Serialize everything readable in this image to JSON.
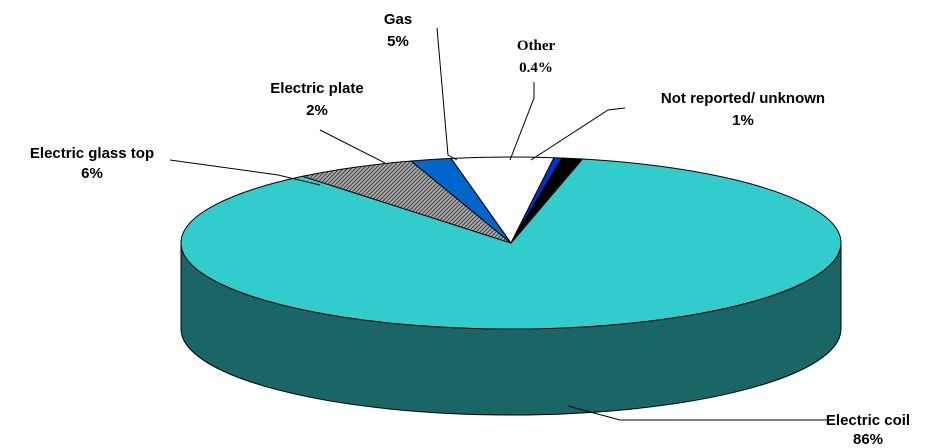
{
  "chart_data": {
    "type": "pie",
    "title": "",
    "three_d": true,
    "legend": "none",
    "slices": [
      {
        "name": "Electric coil",
        "value": 86,
        "label": "86%",
        "color": "#33CCCC",
        "side_color": "#1A6666"
      },
      {
        "name": "Electric glass top",
        "value": 6,
        "label": "6%",
        "color": "#999999",
        "side_color": "#555555",
        "pattern": "hatch"
      },
      {
        "name": "Electric plate",
        "value": 2,
        "label": "2%",
        "color": "#0066CC",
        "side_color": "#003366"
      },
      {
        "name": "Gas",
        "value": 5,
        "label": "5%",
        "color": "#FFFFFF",
        "side_color": "#DDDDDD"
      },
      {
        "name": "Other",
        "value": 0.4,
        "label": "0.4%",
        "color": "#0033CC",
        "side_color": "#001A66"
      },
      {
        "name": "Not reported/ unknown",
        "value": 1,
        "label": "1%",
        "color": "#000000",
        "side_color": "#000000"
      }
    ]
  }
}
